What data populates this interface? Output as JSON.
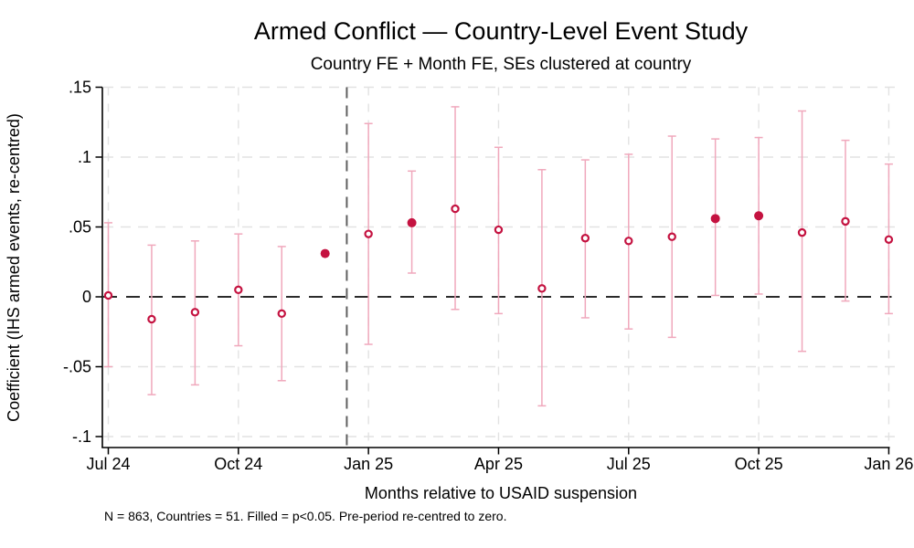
{
  "chart_data": {
    "type": "scatter",
    "subtype": "event-study-coefficient-plot",
    "title": "Armed Conflict — Country-Level Event Study",
    "subtitle": "Country FE + Month FE, SEs clustered at country",
    "xlabel": "Months relative to USAID suspension",
    "ylabel": "Coefficient (IHS armed events, re-centred)",
    "note": "N = 863, Countries = 51. Filled = p<0.05. Pre-period re-centred to zero.",
    "ylim": [
      -0.1,
      0.15
    ],
    "grid": "on",
    "legend": "none",
    "y_ticks": [
      {
        "label": ".15",
        "value": 0.15
      },
      {
        "label": ".1",
        "value": 0.1
      },
      {
        "label": ".05",
        "value": 0.05
      },
      {
        "label": "0",
        "value": 0
      },
      {
        "label": "-.05",
        "value": -0.05
      },
      {
        "label": "-.1",
        "value": -0.1
      }
    ],
    "x_ticks": [
      {
        "label": "Jul 24",
        "month_index": 0
      },
      {
        "label": "Oct 24",
        "month_index": 3
      },
      {
        "label": "Jan 25",
        "month_index": 6
      },
      {
        "label": "Apr 25",
        "month_index": 9
      },
      {
        "label": "Jul 25",
        "month_index": 12
      },
      {
        "label": "Oct 25",
        "month_index": 15
      },
      {
        "label": "Jan 26",
        "month_index": 18
      }
    ],
    "zero_line_value": 0,
    "treatment_line_month_index": 5.5,
    "series": [
      {
        "name": "coefficient",
        "points": [
          {
            "month": "Jul 24",
            "month_index": 0,
            "coef": 0.001,
            "ci_low": -0.05,
            "ci_high": 0.053,
            "filled": false
          },
          {
            "month": "Aug 24",
            "month_index": 1,
            "coef": -0.016,
            "ci_low": -0.07,
            "ci_high": 0.037,
            "filled": false
          },
          {
            "month": "Sep 24",
            "month_index": 2,
            "coef": -0.011,
            "ci_low": -0.063,
            "ci_high": 0.04,
            "filled": false
          },
          {
            "month": "Oct 24",
            "month_index": 3,
            "coef": 0.005,
            "ci_low": -0.035,
            "ci_high": 0.045,
            "filled": false
          },
          {
            "month": "Nov 24",
            "month_index": 4,
            "coef": -0.012,
            "ci_low": -0.06,
            "ci_high": 0.036,
            "filled": false
          },
          {
            "month": "Dec 24",
            "month_index": 5,
            "coef": 0.031,
            "ci_low": null,
            "ci_high": null,
            "filled": true
          },
          {
            "month": "Jan 25",
            "month_index": 6,
            "coef": 0.045,
            "ci_low": -0.034,
            "ci_high": 0.124,
            "filled": false
          },
          {
            "month": "Feb 25",
            "month_index": 7,
            "coef": 0.053,
            "ci_low": 0.017,
            "ci_high": 0.09,
            "filled": true
          },
          {
            "month": "Mar 25",
            "month_index": 8,
            "coef": 0.063,
            "ci_low": -0.009,
            "ci_high": 0.136,
            "filled": false
          },
          {
            "month": "Apr 25",
            "month_index": 9,
            "coef": 0.048,
            "ci_low": -0.012,
            "ci_high": 0.107,
            "filled": false
          },
          {
            "month": "May 25",
            "month_index": 10,
            "coef": 0.006,
            "ci_low": -0.078,
            "ci_high": 0.091,
            "filled": false
          },
          {
            "month": "Jun 25",
            "month_index": 11,
            "coef": 0.042,
            "ci_low": -0.015,
            "ci_high": 0.098,
            "filled": false
          },
          {
            "month": "Jul 25",
            "month_index": 12,
            "coef": 0.04,
            "ci_low": -0.023,
            "ci_high": 0.102,
            "filled": false
          },
          {
            "month": "Aug 25",
            "month_index": 13,
            "coef": 0.043,
            "ci_low": -0.029,
            "ci_high": 0.115,
            "filled": false
          },
          {
            "month": "Sep 25",
            "month_index": 14,
            "coef": 0.056,
            "ci_low": 0.001,
            "ci_high": 0.113,
            "filled": true
          },
          {
            "month": "Oct 25",
            "month_index": 15,
            "coef": 0.058,
            "ci_low": 0.002,
            "ci_high": 0.114,
            "filled": true
          },
          {
            "month": "Nov 25",
            "month_index": 16,
            "coef": 0.046,
            "ci_low": -0.039,
            "ci_high": 0.133,
            "filled": false
          },
          {
            "month": "Dec 25",
            "month_index": 17,
            "coef": 0.054,
            "ci_low": -0.003,
            "ci_high": 0.112,
            "filled": false
          },
          {
            "month": "Jan 26",
            "month_index": 18,
            "coef": 0.041,
            "ci_low": -0.012,
            "ci_high": 0.095,
            "filled": false
          }
        ]
      }
    ],
    "colors": {
      "marker": "#C41240",
      "ci_bar": "#F0A8BC",
      "grid_line": "#E2E2E2",
      "zero_line": "#2B2B2B",
      "treatment_line": "#5F5F5F",
      "axis": "#000000",
      "background": "#FFFFFF"
    }
  }
}
